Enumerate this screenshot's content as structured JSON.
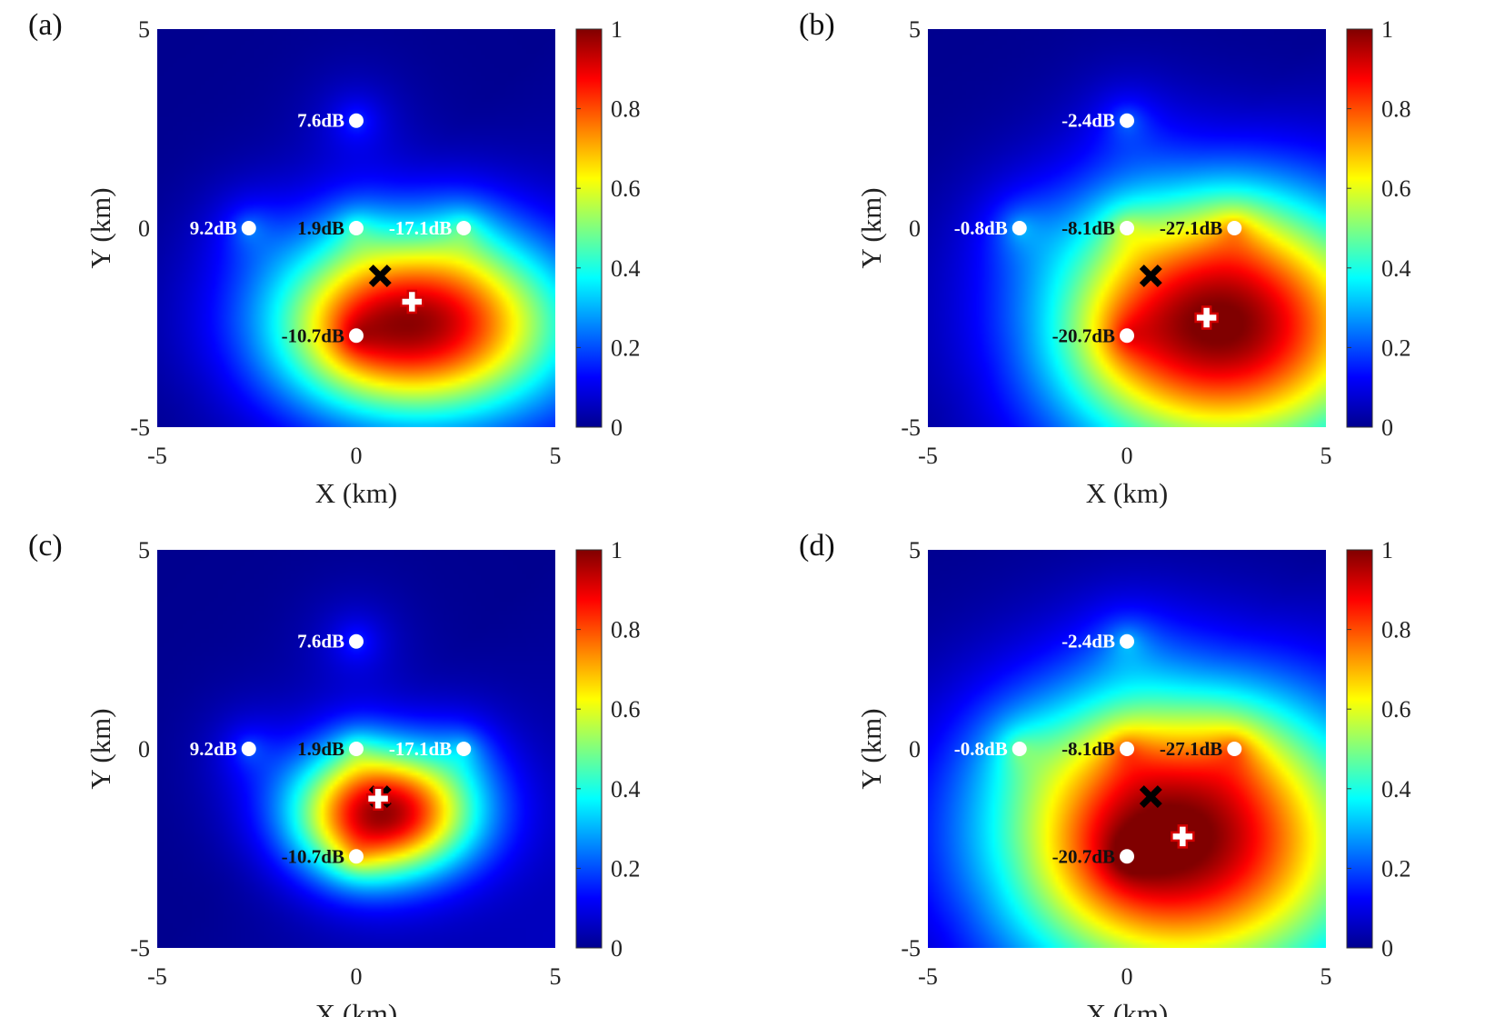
{
  "chart_data": [
    {
      "panel": "(a)",
      "type": "heatmap",
      "xlabel": "X (km)",
      "ylabel": "Y (km)",
      "xlim": [
        -5,
        5
      ],
      "ylim": [
        -5,
        5
      ],
      "xticks": [
        "-5",
        "0",
        "5"
      ],
      "yticks": [
        "5",
        "0",
        "-5"
      ],
      "colorbar": {
        "range": [
          0,
          1
        ],
        "ticks": [
          "1",
          "0.8",
          "0.6",
          "0.4",
          "0.2",
          "0"
        ]
      },
      "sensors": [
        {
          "x": 0,
          "y": 2.7,
          "label": "7.6dB",
          "color": "#ffffff"
        },
        {
          "x": -2.7,
          "y": 0,
          "label": "9.2dB",
          "color": "#ffffff"
        },
        {
          "x": 0,
          "y": 0,
          "label": "1.9dB",
          "color": "#111111"
        },
        {
          "x": 2.7,
          "y": 0,
          "label": "-17.1dB",
          "color": "#ffffff"
        },
        {
          "x": 0,
          "y": -2.7,
          "label": "-10.7dB",
          "color": "#111111"
        }
      ],
      "true_source": {
        "x": 0.6,
        "y": -1.2
      },
      "estimate": {
        "x": 1.4,
        "y": -1.85
      },
      "field": {
        "peak": {
          "x": 1.5,
          "y": -2.4
        },
        "spread_x": 3.6,
        "spread_y": 2.3,
        "base": 0.55
      }
    },
    {
      "panel": "(b)",
      "type": "heatmap",
      "xlabel": "X (km)",
      "ylabel": "Y (km)",
      "xlim": [
        -5,
        5
      ],
      "ylim": [
        -5,
        5
      ],
      "xticks": [
        "-5",
        "0",
        "5"
      ],
      "yticks": [
        "5",
        "0",
        "-5"
      ],
      "colorbar": {
        "range": [
          0,
          1
        ],
        "ticks": [
          "1",
          "0.8",
          "0.6",
          "0.4",
          "0.2",
          "0"
        ]
      },
      "sensors": [
        {
          "x": 0,
          "y": 2.7,
          "label": "-2.4dB",
          "color": "#ffffff"
        },
        {
          "x": -2.7,
          "y": 0,
          "label": "-0.8dB",
          "color": "#ffffff"
        },
        {
          "x": 0,
          "y": 0,
          "label": "-8.1dB",
          "color": "#111111"
        },
        {
          "x": 2.7,
          "y": 0,
          "label": "-27.1dB",
          "color": "#111111"
        },
        {
          "x": 0,
          "y": -2.7,
          "label": "-20.7dB",
          "color": "#111111"
        }
      ],
      "true_source": {
        "x": 0.6,
        "y": -1.2
      },
      "estimate": {
        "x": 2.0,
        "y": -2.25
      },
      "field": {
        "peak": {
          "x": 2.3,
          "y": -2.4
        },
        "spread_x": 4.2,
        "spread_y": 3.2,
        "base": 0.75
      }
    },
    {
      "panel": "(c)",
      "type": "heatmap",
      "xlabel": "X (km)",
      "ylabel": "Y (km)",
      "xlim": [
        -5,
        5
      ],
      "ylim": [
        -5,
        5
      ],
      "xticks": [
        "-5",
        "0",
        "5"
      ],
      "yticks": [
        "5",
        "0",
        "-5"
      ],
      "colorbar": {
        "range": [
          0,
          1
        ],
        "ticks": [
          "1",
          "0.8",
          "0.6",
          "0.4",
          "0.2",
          "0"
        ]
      },
      "sensors": [
        {
          "x": 0,
          "y": 2.7,
          "label": "7.6dB",
          "color": "#ffffff"
        },
        {
          "x": -2.7,
          "y": 0,
          "label": "9.2dB",
          "color": "#ffffff"
        },
        {
          "x": 0,
          "y": 0,
          "label": "1.9dB",
          "color": "#111111"
        },
        {
          "x": 2.7,
          "y": 0,
          "label": "-17.1dB",
          "color": "#ffffff"
        },
        {
          "x": 0,
          "y": -2.7,
          "label": "-10.7dB",
          "color": "#111111"
        }
      ],
      "true_source": {
        "x": 0.6,
        "y": -1.2
      },
      "estimate": {
        "x": 0.55,
        "y": -1.25
      },
      "field": {
        "peak": {
          "x": 0.7,
          "y": -1.6
        },
        "spread_x": 2.3,
        "spread_y": 1.6,
        "base": 0.45
      }
    },
    {
      "panel": "(d)",
      "type": "heatmap",
      "xlabel": "X (km)",
      "ylabel": "Y (km)",
      "xlim": [
        -5,
        5
      ],
      "ylim": [
        -5,
        5
      ],
      "xticks": [
        "-5",
        "0",
        "5"
      ],
      "yticks": [
        "5",
        "0",
        "-5"
      ],
      "colorbar": {
        "range": [
          0,
          1
        ],
        "ticks": [
          "1",
          "0.8",
          "0.6",
          "0.4",
          "0.2",
          "0"
        ]
      },
      "sensors": [
        {
          "x": 0,
          "y": 2.7,
          "label": "-2.4dB",
          "color": "#ffffff"
        },
        {
          "x": -2.7,
          "y": 0,
          "label": "-0.8dB",
          "color": "#ffffff"
        },
        {
          "x": 0,
          "y": 0,
          "label": "-8.1dB",
          "color": "#111111"
        },
        {
          "x": 2.7,
          "y": 0,
          "label": "-27.1dB",
          "color": "#111111"
        },
        {
          "x": 0,
          "y": -2.7,
          "label": "-20.7dB",
          "color": "#111111"
        }
      ],
      "true_source": {
        "x": 0.6,
        "y": -1.2
      },
      "estimate": {
        "x": 1.4,
        "y": -2.2
      },
      "field": {
        "peak": {
          "x": 1.2,
          "y": -2.2
        },
        "spread_x": 4.6,
        "spread_y": 3.6,
        "base": 0.85
      }
    }
  ]
}
